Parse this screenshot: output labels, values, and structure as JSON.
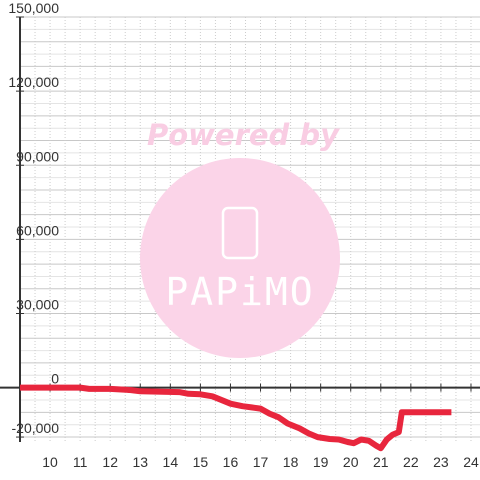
{
  "chart_data": {
    "type": "line",
    "title": "",
    "xlabel": "",
    "ylabel": "",
    "xlim": [
      9,
      24.3
    ],
    "ylim": [
      -22000,
      150000
    ],
    "x_ticks": [
      10,
      11,
      12,
      13,
      14,
      15,
      16,
      17,
      18,
      19,
      20,
      21,
      22,
      23,
      24
    ],
    "x_tick_labels": [
      "10",
      "11",
      "12",
      "13",
      "14",
      "15",
      "16",
      "17",
      "18",
      "19",
      "20",
      "21",
      "22",
      "23",
      "24"
    ],
    "y_ticks": [
      -20000,
      0,
      30000,
      60000,
      90000,
      120000,
      150000
    ],
    "y_tick_labels": [
      "-20,000",
      "0",
      "30,000",
      "60,000",
      "90,000",
      "120,000",
      "150,000"
    ],
    "grid": true,
    "legend": "none",
    "series": [
      {
        "color": "#e8263d",
        "x": [
          9.0,
          10.0,
          11.0,
          11.3,
          12.0,
          12.7,
          13.0,
          14.3,
          14.6,
          15.0,
          15.4,
          15.8,
          16.0,
          16.4,
          16.7,
          17.0,
          17.3,
          17.6,
          17.9,
          18.3,
          18.6,
          18.9,
          19.3,
          19.6,
          19.9,
          20.1,
          20.35,
          20.6,
          20.85,
          21.0,
          21.2,
          21.4,
          21.6,
          21.7,
          22.0,
          22.5,
          23.0,
          23.35
        ],
        "y": [
          0,
          0,
          0,
          -500,
          -500,
          -1000,
          -1500,
          -1800,
          -2500,
          -2700,
          -3500,
          -5500,
          -6500,
          -7500,
          -8000,
          -8500,
          -10500,
          -12000,
          -14500,
          -16500,
          -18500,
          -20000,
          -20800,
          -21000,
          -22000,
          -22500,
          -21000,
          -21500,
          -23500,
          -24500,
          -21000,
          -19000,
          -18000,
          -10000,
          -10000,
          -10000,
          -10000,
          -10000
        ]
      }
    ]
  },
  "watermark": {
    "text": "Powered by",
    "brand": "PAPiMO"
  }
}
